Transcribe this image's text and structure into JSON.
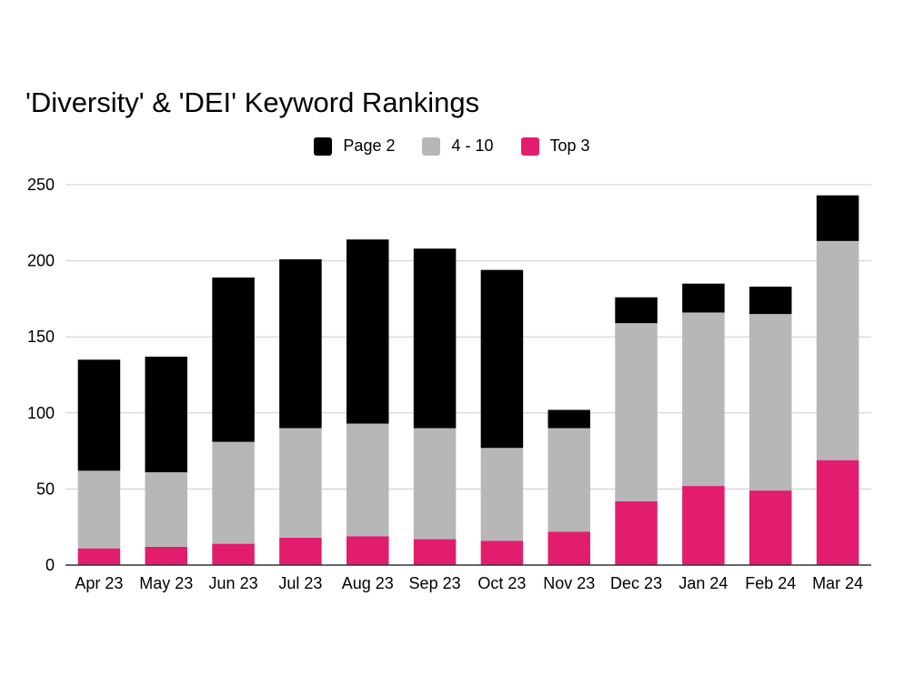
{
  "chart_data": {
    "type": "bar",
    "stacked": true,
    "title": "'Diversity' & 'DEI' Keyword Rankings",
    "xlabel": "",
    "ylabel": "",
    "ylim": [
      0,
      250
    ],
    "yticks": [
      "0",
      "50",
      "100",
      "150",
      "200",
      "250"
    ],
    "grid": true,
    "legend_position": "top",
    "categories": [
      "Apr 23",
      "May 23",
      "Jun 23",
      "Jul 23",
      "Aug 23",
      "Sep 23",
      "Oct 23",
      "Nov 23",
      "Dec 23",
      "Jan 24",
      "Feb 24",
      "Mar 24"
    ],
    "series": [
      {
        "name": "Top 3",
        "color": "#e21d6d",
        "values": [
          11,
          12,
          14,
          18,
          19,
          17,
          16,
          22,
          42,
          52,
          49,
          69
        ]
      },
      {
        "name": "4 - 10",
        "color": "#b7b7b7",
        "values": [
          51,
          49,
          67,
          72,
          74,
          73,
          61,
          68,
          117,
          114,
          116,
          144
        ]
      },
      {
        "name": "Page 2",
        "color": "#000000",
        "values": [
          73,
          76,
          108,
          111,
          121,
          118,
          117,
          12,
          17,
          19,
          18,
          30
        ]
      }
    ],
    "legend_order": [
      "Page 2",
      "4 - 10",
      "Top 3"
    ]
  }
}
